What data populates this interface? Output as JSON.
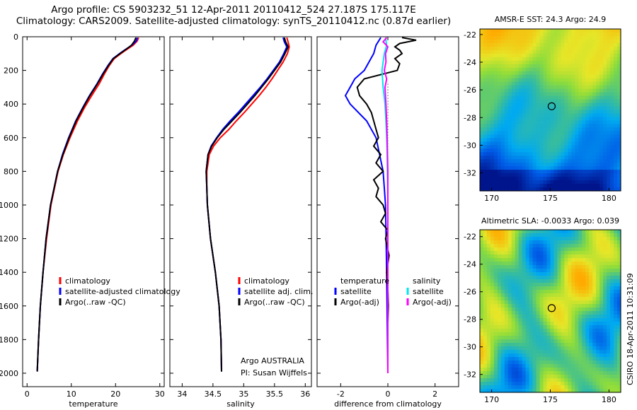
{
  "title": {
    "line1": "Argo profile: CS 5903232_51 12-Apr-2011 20110412_524 27.187S 175.117E",
    "line2": "Climatology: CARS2009. Satellite-adjusted climatology: synTS_20110412.nc (0.87d earlier)"
  },
  "colors": {
    "climatology": "#ff0000",
    "satellite": "#0000ff",
    "argo": "#000000",
    "sal_sat": "#00e5ee",
    "sal_argo": "#ff00ff"
  },
  "chart_data": [
    {
      "type": "line",
      "id": "temperature",
      "xlabel": "temperature",
      "xlim": [
        -1,
        31
      ],
      "ylim": [
        2080,
        0
      ],
      "xticks": [
        "0",
        "10",
        "20",
        "30"
      ],
      "yticks": [
        "0",
        "200",
        "400",
        "600",
        "800",
        "1000",
        "1200",
        "1400",
        "1600",
        "1800",
        "2000"
      ],
      "legend": [
        "climatology",
        "satellite-adjusted climatology",
        "Argo(..raw -QC)"
      ],
      "series": [
        {
          "name": "climatology",
          "color": "#ff0000",
          "depth": [
            5,
            25,
            50,
            80,
            100,
            130,
            170,
            220,
            280,
            350,
            420,
            500,
            600,
            700,
            800,
            1000,
            1200,
            1400,
            1600,
            1800,
            1990
          ],
          "values": [
            25.2,
            24.9,
            24.0,
            22.3,
            21.2,
            19.7,
            18.6,
            17.5,
            16.3,
            14.6,
            13.0,
            11.4,
            9.7,
            8.2,
            7.0,
            5.4,
            4.4,
            3.6,
            3.0,
            2.6,
            2.3
          ]
        },
        {
          "name": "satellite-adjusted climatology",
          "color": "#0000ff",
          "depth": [
            5,
            25,
            50,
            80,
            100,
            130,
            170,
            220,
            280,
            350,
            420,
            500,
            600,
            700,
            800,
            1000,
            1200,
            1400,
            1600,
            1800,
            1990
          ],
          "values": [
            24.9,
            24.7,
            23.7,
            22.0,
            20.9,
            19.4,
            18.3,
            17.1,
            15.8,
            14.1,
            12.6,
            11.0,
            9.4,
            8.0,
            6.9,
            5.3,
            4.3,
            3.6,
            3.0,
            2.6,
            2.3
          ]
        },
        {
          "name": "Argo(..raw -QC)",
          "color": "#000000",
          "depth": [
            5,
            25,
            50,
            80,
            100,
            130,
            170,
            220,
            280,
            350,
            420,
            500,
            600,
            700,
            800,
            1000,
            1200,
            1400,
            1600,
            1800,
            1990
          ],
          "values": [
            24.6,
            24.3,
            23.6,
            22.1,
            21.0,
            19.5,
            18.4,
            17.2,
            15.9,
            14.2,
            12.7,
            11.1,
            9.5,
            8.1,
            6.9,
            5.3,
            4.3,
            3.6,
            3.0,
            2.6,
            2.3
          ]
        }
      ]
    },
    {
      "type": "line",
      "id": "salinity",
      "xlabel": "salinity",
      "xlim": [
        33.8,
        36.1
      ],
      "ylim": [
        2080,
        0
      ],
      "xticks": [
        "34",
        "34.5",
        "35",
        "35.5",
        "36"
      ],
      "legend": [
        "climatology",
        "satellite adj. clim.",
        "Argo(..raw -QC)"
      ],
      "series": [
        {
          "name": "climatology",
          "color": "#ff0000",
          "depth": [
            5,
            30,
            60,
            100,
            150,
            200,
            250,
            300,
            350,
            400,
            450,
            500,
            550,
            600,
            650,
            700,
            800,
            900,
            1000,
            1200,
            1400,
            1600,
            1800,
            1990
          ],
          "values": [
            35.7,
            35.72,
            35.74,
            35.71,
            35.64,
            35.55,
            35.46,
            35.36,
            35.25,
            35.13,
            35.01,
            34.88,
            34.76,
            34.62,
            34.51,
            34.44,
            34.4,
            34.4,
            34.41,
            34.46,
            34.54,
            34.6,
            34.63,
            34.64
          ]
        },
        {
          "name": "satellite adj. clim.",
          "color": "#0000ff",
          "depth": [
            5,
            30,
            60,
            100,
            150,
            200,
            250,
            300,
            350,
            400,
            450,
            500,
            550,
            600,
            650,
            700,
            800,
            900,
            1000,
            1200,
            1400,
            1600,
            1800,
            1990
          ],
          "values": [
            35.64,
            35.66,
            35.7,
            35.65,
            35.58,
            35.48,
            35.38,
            35.27,
            35.15,
            35.03,
            34.91,
            34.78,
            34.66,
            34.56,
            34.47,
            34.42,
            34.39,
            34.4,
            34.41,
            34.46,
            34.54,
            34.6,
            34.63,
            34.64
          ]
        },
        {
          "name": "Argo(..raw -QC)",
          "color": "#000000",
          "depth": [
            5,
            30,
            60,
            100,
            150,
            200,
            250,
            300,
            350,
            400,
            450,
            500,
            550,
            600,
            650,
            700,
            800,
            900,
            1000,
            1200,
            1400,
            1600,
            1800,
            1990
          ],
          "values": [
            35.66,
            35.68,
            35.72,
            35.67,
            35.6,
            35.5,
            35.4,
            35.29,
            35.18,
            35.06,
            34.94,
            34.81,
            34.68,
            34.57,
            34.48,
            34.42,
            34.39,
            34.4,
            34.41,
            34.46,
            34.54,
            34.6,
            34.63,
            34.64
          ]
        }
      ]
    },
    {
      "type": "line",
      "id": "difference",
      "xlabel": "difference from climatology",
      "xlim": [
        -3,
        3
      ],
      "ylim": [
        2080,
        0
      ],
      "xticks": [
        "-2",
        "0",
        "2"
      ],
      "legend_headers": [
        "temperature",
        "salinity"
      ],
      "legend": [
        "satellite",
        "Argo(-adj)",
        "satellite",
        "Argo(-adj)"
      ],
      "series": [
        {
          "name": "temperature satellite",
          "color": "#0000ff",
          "depth": [
            5,
            50,
            100,
            150,
            200,
            250,
            300,
            350,
            400,
            500,
            600,
            800,
            1000,
            1400,
            2000
          ],
          "values": [
            -0.3,
            -0.5,
            -0.6,
            -0.8,
            -1.0,
            -1.4,
            -1.6,
            -1.8,
            -1.6,
            -0.9,
            -0.5,
            -0.2,
            -0.1,
            -0.05,
            0.0
          ]
        },
        {
          "name": "temperature Argo(-adj)",
          "color": "#000000",
          "depth": [
            5,
            20,
            40,
            60,
            80,
            100,
            130,
            160,
            200,
            250,
            300,
            350,
            400,
            450,
            500,
            550,
            600,
            650,
            700,
            750,
            800,
            850,
            900,
            950,
            1000,
            1050,
            1100,
            1150,
            1200,
            1300,
            1400,
            1500,
            1600,
            1700,
            1800,
            2000
          ],
          "values": [
            0.6,
            1.2,
            0.5,
            0.3,
            0.5,
            0.6,
            0.3,
            0.5,
            0.4,
            -1.0,
            -1.3,
            -1.2,
            -0.9,
            -0.7,
            -0.6,
            -0.5,
            -0.4,
            -0.6,
            -0.3,
            -0.5,
            -0.2,
            -0.6,
            -0.4,
            -0.5,
            -0.2,
            -0.1,
            -0.3,
            0.0,
            -0.1,
            0.05,
            -0.05,
            0.0,
            0.02,
            0.0,
            0.0,
            0.0
          ]
        },
        {
          "name": "salinity satellite",
          "color": "#00e5ee",
          "depth": [
            5,
            50,
            100,
            150,
            200,
            300,
            400,
            500,
            600,
            700,
            800,
            1000,
            1400,
            2000
          ],
          "values": [
            -0.1,
            -0.05,
            -0.15,
            -0.2,
            -0.25,
            -0.2,
            -0.12,
            -0.08,
            -0.05,
            -0.03,
            -0.02,
            0.0,
            0.0,
            0.0
          ]
        },
        {
          "name": "salinity Argo(-adj)",
          "color": "#ff00ff",
          "depth": [
            5,
            30,
            60,
            100,
            150,
            200,
            250,
            300,
            400,
            500,
            600,
            800,
            1000,
            1400,
            2000
          ],
          "values": [
            -0.05,
            -0.2,
            0.0,
            -0.1,
            -0.08,
            -0.15,
            -0.05,
            -0.12,
            -0.08,
            -0.05,
            -0.03,
            0.0,
            0.0,
            0.0,
            0.0
          ]
        }
      ]
    },
    {
      "type": "heatmap",
      "id": "sst_map",
      "title": "AMSR-E SST: 24.3 Argo: 24.9",
      "xlim": [
        169,
        181
      ],
      "ylim": [
        -33.3,
        -21.6
      ],
      "xticks": [
        "170",
        "175",
        "180"
      ],
      "yticks": [
        "-22",
        "-24",
        "-26",
        "-28",
        "-30",
        "-32"
      ],
      "marker": {
        "lon": 175.117,
        "lat": -27.187
      }
    },
    {
      "type": "heatmap",
      "id": "sla_map",
      "title": "Altimetric SLA: -0.0033 Argo: 0.039",
      "xlim": [
        169,
        181
      ],
      "ylim": [
        -33.3,
        -21.5
      ],
      "xticks": [
        "170",
        "175",
        "180"
      ],
      "yticks": [
        "-22",
        "-24",
        "-26",
        "-28",
        "-30",
        "-32"
      ],
      "marker": {
        "lon": 175.117,
        "lat": -27.187
      }
    }
  ],
  "annotations": {
    "institution": "Argo AUSTRALIA",
    "pi": "PI: Susan Wijffels",
    "timestamp": "CSIRO 18-Apr-2011 10:31:09"
  }
}
